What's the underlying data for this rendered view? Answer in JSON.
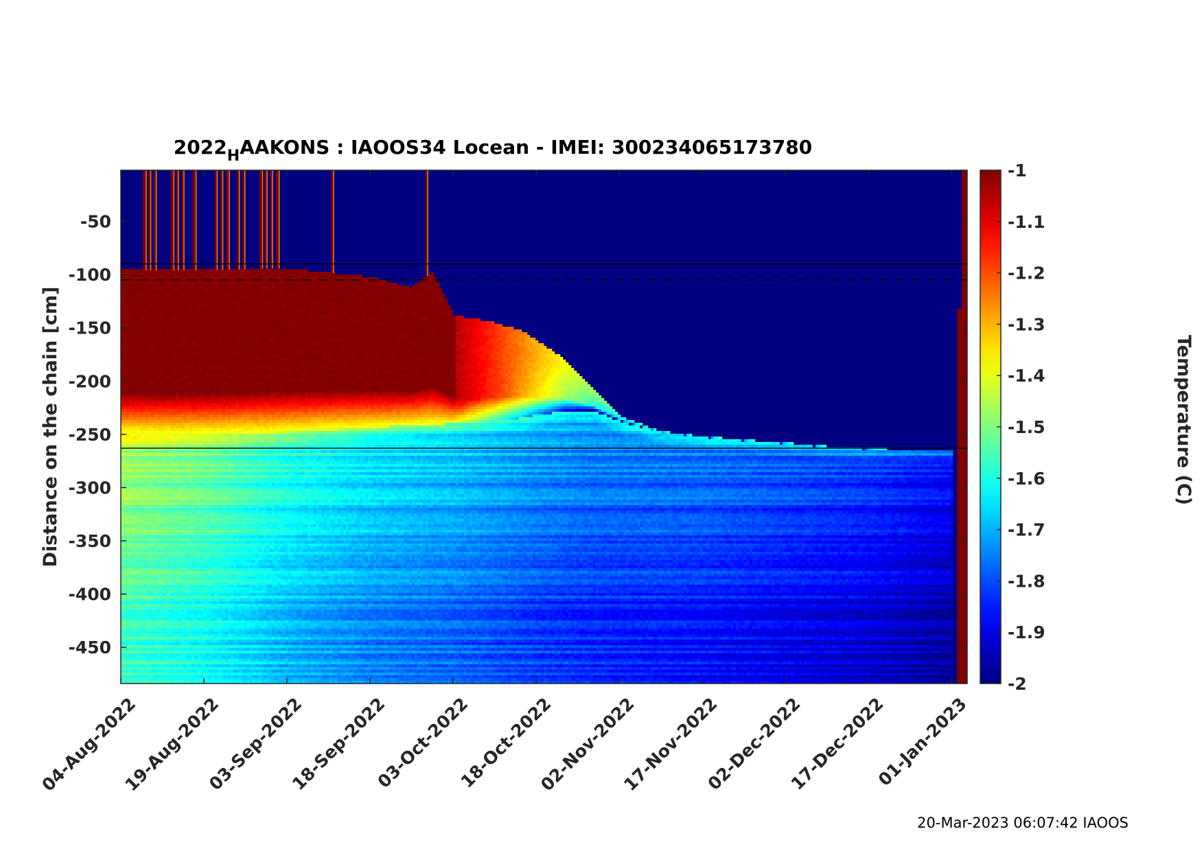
{
  "footer": "20-Mar-2023 06:07:42 IAOOS",
  "chart_data": {
    "type": "heatmap",
    "title": {
      "prefix": "2022",
      "subscript": "H",
      "suffix": "AAKONS : IAOOS34  Locean - IMEI: 300234065173780"
    },
    "xlabel": "",
    "ylabel": "Distance on the chain [cm]",
    "colorbar_label": "Temperature (C)",
    "colormap": "jet",
    "colormap_stops": [
      "#00008f",
      "#0000ff",
      "#00ffff",
      "#ffff00",
      "#ff0000",
      "#800000"
    ],
    "x_start": "2022-08-04",
    "x_end": "2023-01-03",
    "x_ticks": [
      "04-Aug-2022",
      "19-Aug-2022",
      "03-Sep-2022",
      "18-Sep-2022",
      "03-Oct-2022",
      "18-Oct-2022",
      "02-Nov-2022",
      "17-Nov-2022",
      "02-Dec-2022",
      "17-Dec-2022",
      "01-Jan-2023"
    ],
    "ylim": [
      -484,
      -2
    ],
    "y_ticks": [
      -50,
      -100,
      -150,
      -200,
      -250,
      -300,
      -350,
      -400,
      -450
    ],
    "clim": [
      -2,
      -1
    ],
    "c_ticks": [
      -1,
      -1.1,
      -1.2,
      -1.3,
      -1.4,
      -1.5,
      -1.6,
      -1.7,
      -1.8,
      -1.9,
      -2
    ],
    "grid": false,
    "reference_lines": [
      {
        "y": -90,
        "style": "solid"
      },
      {
        "y": -105,
        "style": "dashed"
      },
      {
        "y": -263,
        "style": "solid"
      }
    ],
    "surface_ice_interface": {
      "dates": [
        "2022-08-04",
        "2022-08-19",
        "2022-09-03",
        "2022-09-10",
        "2022-09-18",
        "2022-09-25",
        "2022-09-29",
        "2022-10-03",
        "2022-10-10",
        "2022-10-15",
        "2022-10-18",
        "2022-10-23",
        "2022-10-28",
        "2022-11-02",
        "2022-11-09",
        "2022-11-17",
        "2022-11-24",
        "2022-12-02",
        "2022-12-09",
        "2022-12-17",
        "2022-12-22",
        "2023-01-01",
        "2023-01-03"
      ],
      "depth_cm": [
        -96,
        -96,
        -94,
        -98,
        -102,
        -112,
        -98,
        -138,
        -145,
        -152,
        -162,
        -180,
        -208,
        -233,
        -247,
        -252,
        -255,
        -258,
        -261,
        -263,
        -264,
        -265,
        -265
      ],
      "warm_mix_depth_cm": [
        -250,
        -250,
        -248,
        -246,
        -244,
        -242,
        -241,
        -240,
        -238,
        -235,
        -232,
        -228,
        -228,
        -238,
        -248,
        -253,
        -256,
        -259,
        -262,
        -264,
        -265,
        -266,
        -266
      ]
    },
    "temperature_profile": {
      "note_date_key": "days_from_start",
      "days_from_start": [
        0,
        15,
        30,
        45,
        60,
        75,
        90,
        105,
        120,
        135,
        150
      ],
      "below_ice_mean_c": [
        -1.45,
        -1.5,
        -1.58,
        -1.63,
        -1.66,
        -1.7,
        -1.73,
        -1.75,
        -1.78,
        -1.81,
        -1.86
      ]
    },
    "air_spikes_dates": [
      "2022-08-08",
      "2022-08-09",
      "2022-08-10",
      "2022-08-13",
      "2022-08-14",
      "2022-08-15",
      "2022-08-17",
      "2022-08-21",
      "2022-08-22",
      "2022-08-23",
      "2022-08-25",
      "2022-08-26",
      "2022-08-29",
      "2022-08-30",
      "2022-08-31",
      "2022-09-01",
      "2022-09-11",
      "2022-09-28"
    ],
    "end_column": {
      "from": "2023-01-01",
      "to": "2023-01-03",
      "value_c": -1
    }
  }
}
